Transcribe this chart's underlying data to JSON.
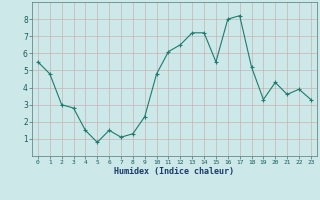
{
  "x": [
    0,
    1,
    2,
    3,
    4,
    5,
    6,
    7,
    8,
    9,
    10,
    11,
    12,
    13,
    14,
    15,
    16,
    17,
    18,
    19,
    20,
    21,
    22,
    23
  ],
  "y": [
    5.5,
    4.8,
    3.0,
    2.8,
    1.5,
    0.8,
    1.5,
    1.1,
    1.3,
    2.3,
    4.8,
    6.1,
    6.5,
    7.2,
    7.2,
    5.5,
    8.0,
    8.2,
    5.2,
    3.3,
    4.3,
    3.6,
    3.9,
    3.3
  ],
  "xlabel": "Humidex (Indice chaleur)",
  "line_color": "#1e7b6e",
  "marker_color": "#1e7b6e",
  "bg_color": "#cce8e8",
  "grid_major_color": "#b8d4d4",
  "grid_minor_color": "#c8e0e0",
  "ylim": [
    0,
    9
  ],
  "xlim": [
    -0.5,
    23.5
  ],
  "yticks": [
    1,
    2,
    3,
    4,
    5,
    6,
    7,
    8
  ],
  "xticks": [
    0,
    1,
    2,
    3,
    4,
    5,
    6,
    7,
    8,
    9,
    10,
    11,
    12,
    13,
    14,
    15,
    16,
    17,
    18,
    19,
    20,
    21,
    22,
    23
  ],
  "tick_color": "#1a5a5a",
  "xlabel_color": "#1a3a6a"
}
